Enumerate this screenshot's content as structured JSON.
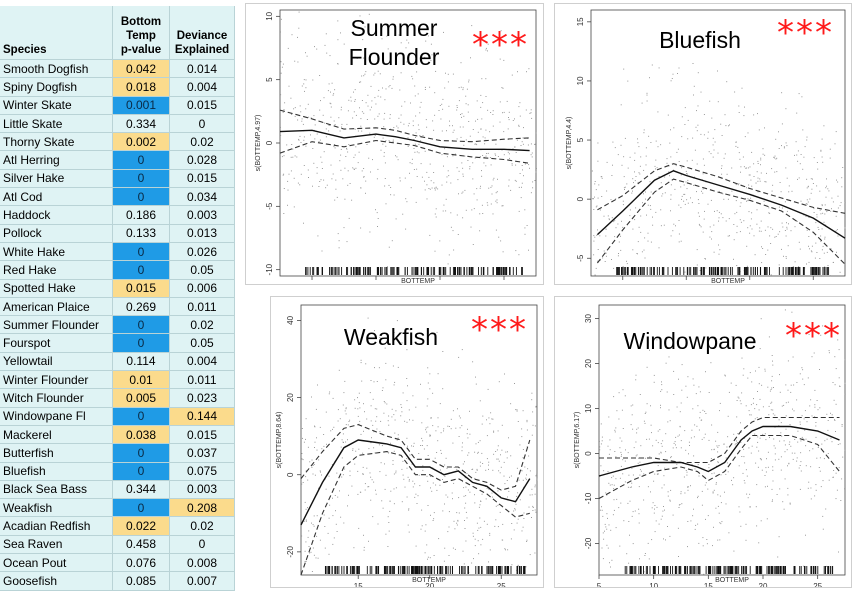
{
  "table": {
    "headers": {
      "species": "Species",
      "pvalue": "Bottom\nTemp\np-value",
      "deviance": "Deviance\nExplained"
    },
    "colors": {
      "significant": "#1f9be6",
      "moderate": "#fbdb8c",
      "default": "#dff3f4"
    },
    "rows": [
      {
        "species": "Smooth Dogfish",
        "pvalue": "0.042",
        "deviance": "0.014",
        "p_color": "gold",
        "d_color": ""
      },
      {
        "species": "Spiny Dogfish",
        "pvalue": "0.018",
        "deviance": "0.004",
        "p_color": "gold",
        "d_color": ""
      },
      {
        "species": "Winter Skate",
        "pvalue": "0.001",
        "deviance": "0.015",
        "p_color": "blue",
        "d_color": ""
      },
      {
        "species": "Little Skate",
        "pvalue": "0.334",
        "deviance": "0",
        "p_color": "",
        "d_color": ""
      },
      {
        "species": "Thorny Skate",
        "pvalue": "0.002",
        "deviance": "0.02",
        "p_color": "gold",
        "d_color": ""
      },
      {
        "species": "Atl Herring",
        "pvalue": "0",
        "deviance": "0.028",
        "p_color": "blue",
        "d_color": ""
      },
      {
        "species": "Silver Hake",
        "pvalue": "0",
        "deviance": "0.015",
        "p_color": "blue",
        "d_color": ""
      },
      {
        "species": "Atl Cod",
        "pvalue": "0",
        "deviance": "0.034",
        "p_color": "blue",
        "d_color": ""
      },
      {
        "species": "Haddock",
        "pvalue": "0.186",
        "deviance": "0.003",
        "p_color": "",
        "d_color": ""
      },
      {
        "species": "Pollock",
        "pvalue": "0.133",
        "deviance": "0.013",
        "p_color": "",
        "d_color": ""
      },
      {
        "species": "White Hake",
        "pvalue": "0",
        "deviance": "0.026",
        "p_color": "blue",
        "d_color": ""
      },
      {
        "species": "Red Hake",
        "pvalue": "0",
        "deviance": "0.05",
        "p_color": "blue",
        "d_color": ""
      },
      {
        "species": "Spotted Hake",
        "pvalue": "0.015",
        "deviance": "0.006",
        "p_color": "gold",
        "d_color": ""
      },
      {
        "species": "American Plaice",
        "pvalue": "0.269",
        "deviance": "0.011",
        "p_color": "",
        "d_color": ""
      },
      {
        "species": "Summer Flounder",
        "pvalue": "0",
        "deviance": "0.02",
        "p_color": "blue",
        "d_color": ""
      },
      {
        "species": "Fourspot",
        "pvalue": "0",
        "deviance": "0.05",
        "p_color": "blue",
        "d_color": ""
      },
      {
        "species": "Yellowtail",
        "pvalue": "0.114",
        "deviance": "0.004",
        "p_color": "",
        "d_color": ""
      },
      {
        "species": "Winter Flounder",
        "pvalue": "0.01",
        "deviance": "0.011",
        "p_color": "gold",
        "d_color": ""
      },
      {
        "species": "Witch Flounder",
        "pvalue": "0.005",
        "deviance": "0.023",
        "p_color": "gold",
        "d_color": ""
      },
      {
        "species": "Windowpane Fl",
        "pvalue": "0",
        "deviance": "0.144",
        "p_color": "blue",
        "d_color": "gold"
      },
      {
        "species": "Mackerel",
        "pvalue": "0.038",
        "deviance": "0.015",
        "p_color": "gold",
        "d_color": ""
      },
      {
        "species": "Butterfish",
        "pvalue": "0",
        "deviance": "0.037",
        "p_color": "blue",
        "d_color": ""
      },
      {
        "species": "Bluefish",
        "pvalue": "0",
        "deviance": "0.075",
        "p_color": "blue",
        "d_color": ""
      },
      {
        "species": "Black Sea Bass",
        "pvalue": "0.344",
        "deviance": "0.003",
        "p_color": "",
        "d_color": ""
      },
      {
        "species": "Weakfish",
        "pvalue": "0",
        "deviance": "0.208",
        "p_color": "blue",
        "d_color": "gold"
      },
      {
        "species": "Acadian Redfish",
        "pvalue": "0.022",
        "deviance": "0.02",
        "p_color": "gold",
        "d_color": ""
      },
      {
        "species": "Sea Raven",
        "pvalue": "0.458",
        "deviance": "0",
        "p_color": "",
        "d_color": ""
      },
      {
        "species": "Ocean Pout",
        "pvalue": "0.076",
        "deviance": "0.008",
        "p_color": "",
        "d_color": ""
      },
      {
        "species": "Goosefish",
        "pvalue": "0.085",
        "deviance": "0.007",
        "p_color": "",
        "d_color": ""
      }
    ]
  },
  "chart_data": [
    {
      "type": "line",
      "title": "Summer Flounder",
      "significance": "***",
      "xlabel": "BOTTEMP",
      "ylabel": "s(BOTTEMP,4.97)",
      "xlim": [
        7.5,
        27.5
      ],
      "ylim": [
        -10.5,
        10.5
      ],
      "xticks": [
        10,
        15,
        20,
        25
      ],
      "yticks": [
        -10,
        -5,
        0,
        5,
        10
      ],
      "x": [
        7.5,
        10,
        12.5,
        15,
        16.5,
        18,
        20,
        22.5,
        25,
        27
      ],
      "fit": [
        0.9,
        1.0,
        0.4,
        0.7,
        0.5,
        0.2,
        -0.3,
        -0.5,
        -0.5,
        -0.6
      ],
      "upper": [
        2.6,
        1.9,
        1.1,
        1.2,
        1.0,
        0.6,
        0.2,
        0.1,
        0.3,
        0.4
      ],
      "lower": [
        -0.8,
        0.1,
        -0.3,
        0.2,
        0.0,
        -0.2,
        -0.8,
        -1.1,
        -1.3,
        -1.6
      ]
    },
    {
      "type": "line",
      "title": "Bluefish",
      "significance": "***",
      "xlabel": "BOTTEMP",
      "ylabel": "s(BOTTEMP,4.4)",
      "xlim": [
        7.5,
        27.5
      ],
      "ylim": [
        -6.5,
        16
      ],
      "xticks": [
        10,
        15,
        20,
        25
      ],
      "yticks": [
        -5,
        0,
        5,
        10,
        15
      ],
      "x": [
        8,
        10,
        12.5,
        14,
        15,
        17.5,
        20,
        22.5,
        25,
        27.5
      ],
      "fit": [
        -3.0,
        -1.0,
        1.6,
        2.4,
        2.0,
        1.2,
        0.4,
        -0.5,
        -1.6,
        -3.3
      ],
      "upper": [
        -0.9,
        0.3,
        2.4,
        3.0,
        2.7,
        1.9,
        0.9,
        0.1,
        -0.7,
        -1.2
      ],
      "lower": [
        -5.4,
        -2.6,
        0.6,
        1.7,
        1.4,
        0.6,
        -0.1,
        -1.0,
        -2.8,
        -5.5
      ]
    },
    {
      "type": "line",
      "title": "Weakfish",
      "significance": "***",
      "xlabel": "BOTTEMP",
      "ylabel": "s(BOTTEMP,8.64)",
      "xlim": [
        11,
        27.5
      ],
      "ylim": [
        -26,
        44
      ],
      "xticks": [
        15,
        20,
        25
      ],
      "yticks": [
        -20,
        0,
        20,
        40
      ],
      "x": [
        11,
        12.5,
        14,
        15,
        17,
        18,
        19,
        20,
        21,
        22,
        23,
        24,
        25,
        26,
        27
      ],
      "fit": [
        -13,
        -2,
        7,
        9,
        8,
        7,
        2,
        2,
        0,
        1,
        -2,
        -3,
        -6,
        -7,
        -1
      ],
      "upper": [
        -1,
        6,
        12,
        13,
        10,
        9,
        4,
        4,
        2,
        2,
        -1,
        -2,
        -4,
        -3,
        9
      ],
      "lower": [
        -26,
        -10,
        2,
        5,
        6,
        5,
        0,
        0,
        -2,
        -1,
        -3,
        -5,
        -8,
        -11,
        -10
      ]
    },
    {
      "type": "line",
      "title": "Windowpane",
      "significance": "***",
      "xlabel": "BOTTEMP",
      "ylabel": "s(BOTTEMP,6.17)",
      "xlim": [
        5,
        27.5
      ],
      "ylim": [
        -27,
        33
      ],
      "xticks": [
        5,
        10,
        15,
        20,
        25
      ],
      "yticks": [
        -20,
        -10,
        0,
        10,
        20,
        30
      ],
      "x": [
        5,
        8,
        10,
        12.5,
        14,
        15,
        16.5,
        18,
        19,
        20,
        22.5,
        25,
        27
      ],
      "fit": [
        -5,
        -3,
        -2,
        -2,
        -3,
        -4,
        -2,
        3,
        5,
        6,
        6,
        5,
        3
      ],
      "upper": [
        -1,
        -1,
        -1,
        -2,
        -2,
        -2,
        0,
        5,
        7,
        8,
        8,
        8,
        8
      ],
      "lower": [
        -10,
        -6,
        -4,
        -3,
        -4,
        -6,
        -4,
        1,
        4,
        4,
        4,
        2,
        -4
      ]
    }
  ]
}
